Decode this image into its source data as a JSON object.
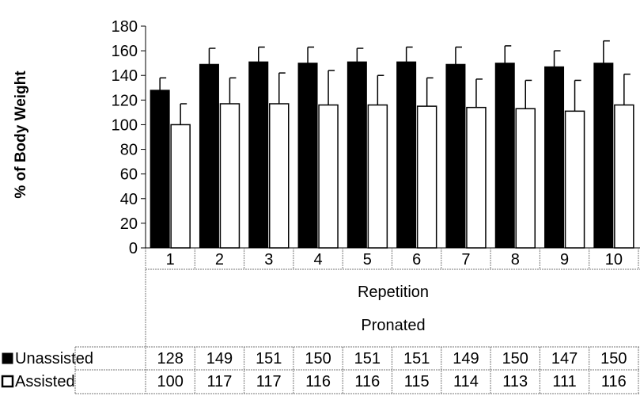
{
  "chart_data": {
    "type": "bar",
    "ylabel": "% of Body Weight",
    "xlabel": "Repetition",
    "group_label": "Pronated",
    "ylim": [
      0,
      180
    ],
    "yticks": [
      0,
      20,
      40,
      60,
      80,
      100,
      120,
      140,
      160,
      180
    ],
    "categories": [
      "1",
      "2",
      "3",
      "4",
      "5",
      "6",
      "7",
      "8",
      "9",
      "10"
    ],
    "legend_position": "bottom data table",
    "series": [
      {
        "name": "Unassisted",
        "color": "#000000",
        "values": [
          128,
          149,
          151,
          150,
          151,
          151,
          149,
          150,
          147,
          150
        ],
        "error": [
          10,
          13,
          12,
          13,
          11,
          12,
          14,
          14,
          13,
          18
        ]
      },
      {
        "name": "Assisted",
        "color": "#ffffff",
        "values": [
          100,
          117,
          117,
          116,
          116,
          115,
          114,
          113,
          111,
          116
        ],
        "error": [
          17,
          21,
          25,
          28,
          24,
          23,
          23,
          23,
          25,
          25
        ]
      }
    ],
    "table": {
      "rows": [
        {
          "label": "Unassisted",
          "values": [
            "128",
            "149",
            "151",
            "150",
            "151",
            "151",
            "149",
            "150",
            "147",
            "150"
          ]
        },
        {
          "label": "Assisted",
          "values": [
            "100",
            "117",
            "117",
            "116",
            "116",
            "115",
            "114",
            "113",
            "111",
            "116"
          ]
        }
      ]
    }
  }
}
